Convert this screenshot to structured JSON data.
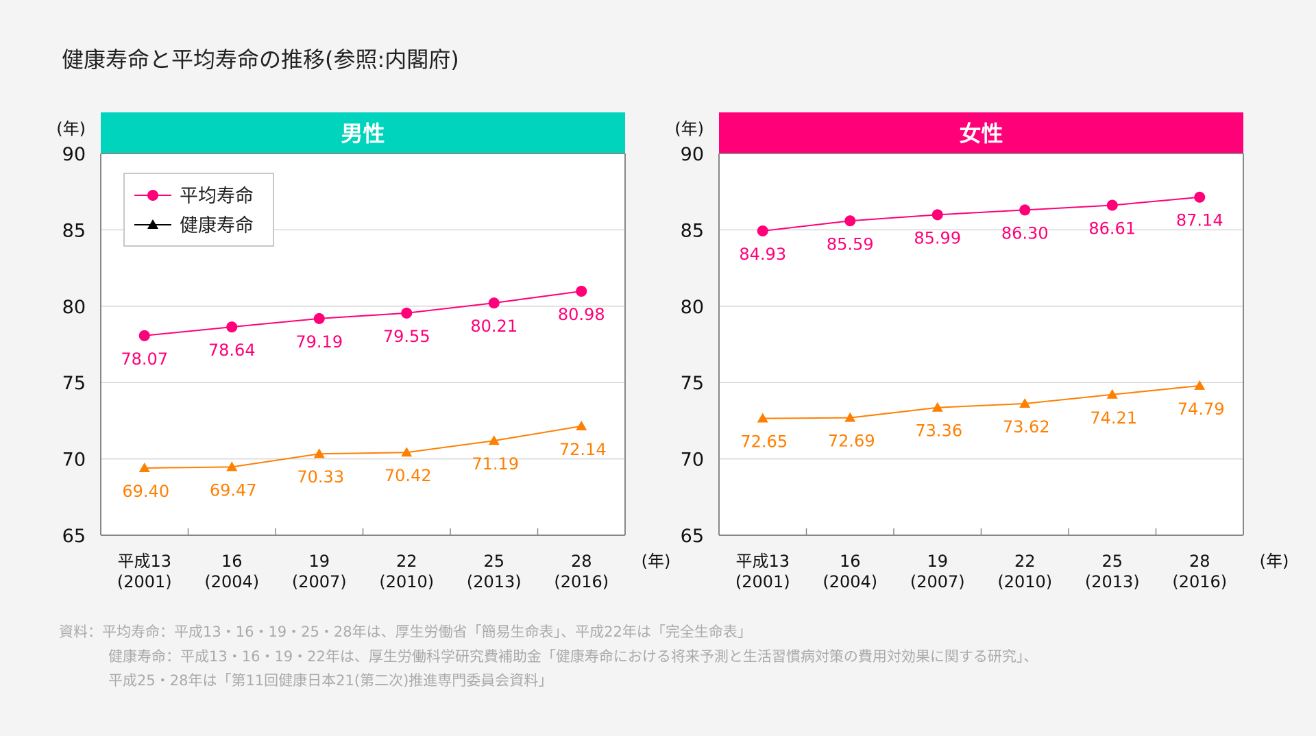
{
  "title": "健康寿命と平均寿命の推移(参照:内閣府)",
  "colors": {
    "male_header": "#00d4bd",
    "female_header": "#ff0079",
    "average": "#ff0079",
    "healthy": "#ff7f00",
    "legend_line": "#ff0079",
    "legend_healthy": "#000000"
  },
  "chart_data": [
    {
      "type": "line",
      "title": "男性",
      "y_unit": "(年)",
      "x_unit": "(年)",
      "ylim": [
        65,
        90
      ],
      "yticks": [
        "65",
        "70",
        "75",
        "80",
        "85",
        "90"
      ],
      "categories": [
        [
          "平成13",
          "(2001)"
        ],
        [
          "16",
          "(2004)"
        ],
        [
          "19",
          "(2007)"
        ],
        [
          "22",
          "(2010)"
        ],
        [
          "25",
          "(2013)"
        ],
        [
          "28",
          "(2016)"
        ]
      ],
      "grid": true,
      "legend": {
        "placement": "top-left",
        "entries": [
          "平均寿命",
          "健康寿命"
        ]
      },
      "series": [
        {
          "name": "平均寿命",
          "marker": "circle",
          "values": [
            78.07,
            78.64,
            79.19,
            79.55,
            80.21,
            80.98
          ],
          "labels": [
            "78.07",
            "78.64",
            "79.19",
            "79.55",
            "80.21",
            "80.98"
          ]
        },
        {
          "name": "健康寿命",
          "marker": "triangle",
          "values": [
            69.4,
            69.47,
            70.33,
            70.42,
            71.19,
            72.14
          ],
          "labels": [
            "69.40",
            "69.47",
            "70.33",
            "70.42",
            "71.19",
            "72.14"
          ]
        }
      ]
    },
    {
      "type": "line",
      "title": "女性",
      "y_unit": "(年)",
      "x_unit": "(年)",
      "ylim": [
        65,
        90
      ],
      "yticks": [
        "65",
        "70",
        "75",
        "80",
        "85",
        "90"
      ],
      "categories": [
        [
          "平成13",
          "(2001)"
        ],
        [
          "16",
          "(2004)"
        ],
        [
          "19",
          "(2007)"
        ],
        [
          "22",
          "(2010)"
        ],
        [
          "25",
          "(2013)"
        ],
        [
          "28",
          "(2016)"
        ]
      ],
      "grid": true,
      "series": [
        {
          "name": "平均寿命",
          "marker": "circle",
          "values": [
            84.93,
            85.59,
            85.99,
            86.3,
            86.61,
            87.14
          ],
          "labels": [
            "84.93",
            "85.59",
            "85.99",
            "86.30",
            "86.61",
            "87.14"
          ]
        },
        {
          "name": "健康寿命",
          "marker": "triangle",
          "values": [
            72.65,
            72.69,
            73.36,
            73.62,
            74.21,
            74.79
          ],
          "labels": [
            "72.65",
            "72.69",
            "73.36",
            "73.62",
            "74.21",
            "74.79"
          ]
        }
      ]
    }
  ],
  "footnotes": [
    "資料：平均寿命：平成13・16・19・25・28年は、厚生労働省「簡易生命表」、平成22年は「完全生命表」",
    "健康寿命：平成13・16・19・22年は、厚生労働科学研究費補助金「健康寿命における将来予測と生活習慣病対策の費用対効果に関する研究」、",
    "平成25・28年は「第11回健康日本21(第二次)推進専門委員会資料」"
  ]
}
